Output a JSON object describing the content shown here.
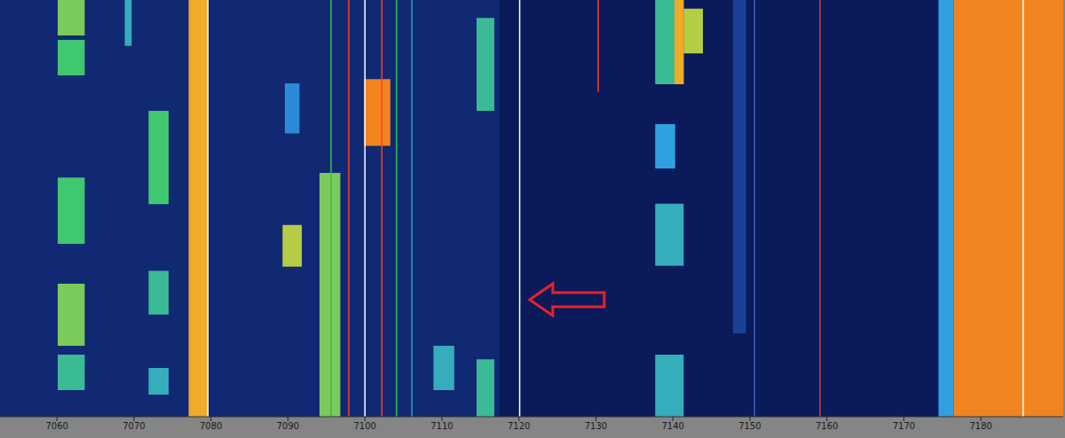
{
  "chart_data": {
    "type": "heatmap",
    "grid": false,
    "tick_labels": "x",
    "xlim": [
      7052.6,
      7190.7
    ],
    "xticks": [
      7060,
      7070,
      7080,
      7090,
      7100,
      7110,
      7120,
      7130,
      7140,
      7150,
      7160,
      7170,
      7180
    ],
    "ylim": [
      0,
      100
    ],
    "zlim": [
      0,
      1
    ],
    "signals": [
      {
        "x0": 7052.6,
        "x1": 7117.5,
        "y0": 0,
        "y1": 100,
        "level": 0.1
      },
      {
        "x0": 7077.1,
        "x1": 7079.7,
        "y0": 0,
        "y1": 100,
        "level": 0.8
      },
      {
        "x0": 7174.5,
        "x1": 7176.5,
        "y0": 0,
        "y1": 100,
        "level": 0.45
      },
      {
        "x0": 7176.5,
        "x1": 7190.7,
        "y0": 0,
        "y1": 100,
        "level": 0.85
      },
      {
        "x0": 7060.1,
        "x1": 7063.6,
        "y0": 91.5,
        "y1": 100,
        "level": 0.65
      },
      {
        "x0": 7060.1,
        "x1": 7063.6,
        "y0": 81.9,
        "y1": 90.4,
        "level": 0.6
      },
      {
        "x0": 7060.1,
        "x1": 7063.6,
        "y0": 41.5,
        "y1": 57.4,
        "level": 0.6
      },
      {
        "x0": 7060.1,
        "x1": 7063.6,
        "y0": 17,
        "y1": 31.9,
        "level": 0.65
      },
      {
        "x0": 7060.1,
        "x1": 7063.6,
        "y0": 6.4,
        "y1": 14.9,
        "level": 0.55
      },
      {
        "x0": 7068.8,
        "x1": 7069.7,
        "y0": 89,
        "y1": 100,
        "level": 0.5
      },
      {
        "x0": 7071.9,
        "x1": 7074.5,
        "y0": 51,
        "y1": 73.4,
        "level": 0.6
      },
      {
        "x0": 7071.9,
        "x1": 7074.5,
        "y0": 24.5,
        "y1": 35,
        "level": 0.55
      },
      {
        "x0": 7071.9,
        "x1": 7074.5,
        "y0": 5.3,
        "y1": 11.7,
        "level": 0.5
      },
      {
        "x0": 7089.3,
        "x1": 7091.8,
        "y0": 36,
        "y1": 46,
        "level": 0.7
      },
      {
        "x0": 7089.6,
        "x1": 7091.5,
        "y0": 68,
        "y1": 80,
        "level": 0.4
      },
      {
        "x0": 7094.1,
        "x1": 7096.8,
        "y0": 0,
        "y1": 58.5,
        "level": 0.65
      },
      {
        "x0": 7099.9,
        "x1": 7103.3,
        "y0": 65,
        "y1": 81,
        "level": 0.85
      },
      {
        "x0": 7108.9,
        "x1": 7111.6,
        "y0": 6.4,
        "y1": 17,
        "level": 0.5
      },
      {
        "x0": 7114.5,
        "x1": 7116.8,
        "y0": 73.4,
        "y1": 95.7,
        "level": 0.55
      },
      {
        "x0": 7114.5,
        "x1": 7116.8,
        "y0": 0,
        "y1": 13.8,
        "level": 0.55
      },
      {
        "x0": 7137.7,
        "x1": 7141.4,
        "y0": 79.8,
        "y1": 100,
        "level": 0.55
      },
      {
        "x0": 7140.2,
        "x1": 7141.4,
        "y0": 79.8,
        "y1": 100,
        "level": 0.8
      },
      {
        "x0": 7141.4,
        "x1": 7143.9,
        "y0": 87.2,
        "y1": 97.9,
        "level": 0.7
      },
      {
        "x0": 7137.7,
        "x1": 7140.3,
        "y0": 59.6,
        "y1": 70.2,
        "level": 0.45
      },
      {
        "x0": 7137.7,
        "x1": 7141.4,
        "y0": 36.2,
        "y1": 51.1,
        "level": 0.5
      },
      {
        "x0": 7137.7,
        "x1": 7141.4,
        "y0": 0,
        "y1": 14.9,
        "level": 0.5
      },
      {
        "x0": 7147.8,
        "x1": 7149.5,
        "y0": 20,
        "y1": 100,
        "level": 0.2
      }
    ],
    "carriers": [
      {
        "x": 7079.6,
        "y0": 0,
        "y1": 100,
        "color": "#ffffff"
      },
      {
        "x": 7100.0,
        "y0": 0,
        "y1": 100,
        "color": "#ffffff"
      },
      {
        "x": 7120.1,
        "y0": 0,
        "y1": 100,
        "color": "#ffffff"
      },
      {
        "x": 7185.5,
        "y0": 0,
        "y1": 100,
        "color": "#ffffff"
      },
      {
        "x": 7097.9,
        "y0": 0,
        "y1": 100,
        "color": "#ff4020"
      },
      {
        "x": 7102.2,
        "y0": 0,
        "y1": 100,
        "color": "#ff4020"
      },
      {
        "x": 7159.1,
        "y0": 0,
        "y1": 100,
        "color": "#e04020"
      },
      {
        "x": 7130.3,
        "y0": 78,
        "y1": 100,
        "color": "#ff4020"
      },
      {
        "x": 7095.6,
        "y0": 0,
        "y1": 100,
        "color": "#40c040"
      },
      {
        "x": 7104.1,
        "y0": 0,
        "y1": 100,
        "color": "#30c060"
      },
      {
        "x": 7106.1,
        "y0": 0,
        "y1": 100,
        "color": "#30a0c0"
      },
      {
        "x": 7150.6,
        "y0": 0,
        "y1": 100,
        "color": "#4060c0"
      }
    ],
    "arrow": {
      "x": 7121.4,
      "y": 28.1
    }
  }
}
